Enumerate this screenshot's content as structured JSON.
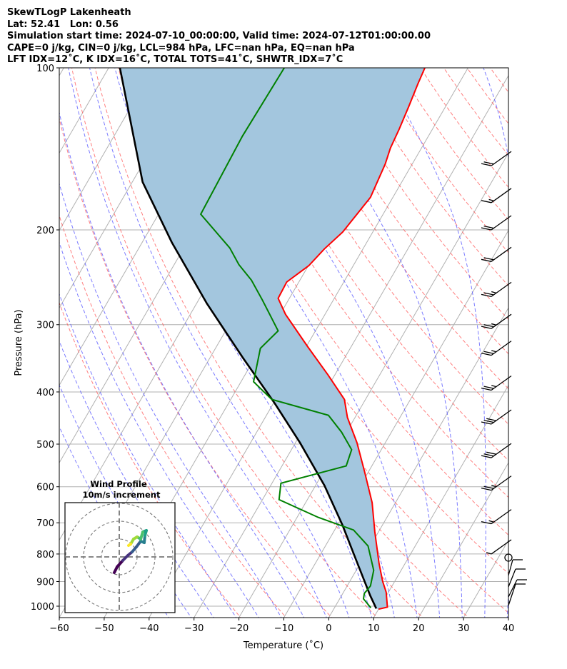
{
  "header": {
    "lines": [
      "SkewTLogP Lakenheath",
      "Lat: 52.41   Lon: 0.56",
      "Simulation start time: 2024-07-10_00:00:00, Valid time: 2024-07-12T01:00:00.00",
      "CAPE=0 j/kg, CIN=0 j/kg, LCL=984 hPa, LFC=nan hPa, EQ=nan hPa",
      "LFT IDX=12˚C, K IDX=16˚C, TOTAL TOTS=41˚C, SHWTR_IDX=7˚C"
    ]
  },
  "colors": {
    "temperature": "#ff0000",
    "dewpoint": "#008000",
    "parcel": "#000000",
    "shade": "#a3c6de",
    "isotherm": "#b0b0b0",
    "dry_adiabat": "#ff6060",
    "moist_adiabat": "#5a5aff"
  },
  "chart_data": {
    "type": "line",
    "subtype": "skewt-logp",
    "xlabel": "Temperature (˚C)",
    "ylabel": "Pressure (hPa)",
    "xlim": [
      -60,
      40
    ],
    "ylim": [
      1051,
      100
    ],
    "xticks": [
      "−60",
      "−50",
      "−40",
      "−30",
      "−20",
      "−10",
      "0",
      "10",
      "20",
      "30",
      "40"
    ],
    "xtick_values": [
      -60,
      -50,
      -40,
      -30,
      -20,
      -10,
      0,
      10,
      20,
      30,
      40
    ],
    "yticks": [
      "100",
      "200",
      "300",
      "400",
      "500",
      "600",
      "700",
      "800",
      "900",
      "1000"
    ],
    "ytick_values": [
      100,
      200,
      300,
      400,
      500,
      600,
      700,
      800,
      900,
      1000
    ],
    "temperature": {
      "p": [
        1013,
        1004,
        942,
        899,
        833,
        728,
        642,
        561,
        497,
        446,
        413,
        372,
        329,
        287,
        268,
        250,
        233,
        217,
        202,
        174,
        151,
        141,
        130,
        118,
        107,
        100
      ],
      "t": [
        10.0,
        11.7,
        9.5,
        7.3,
        4.2,
        -0.8,
        -5.2,
        -11,
        -16.3,
        -21.7,
        -24.7,
        -31.5,
        -39.8,
        -48.8,
        -52.5,
        -52.7,
        -49.9,
        -48.6,
        -46.7,
        -45,
        -46,
        -46.9,
        -47.4,
        -48.2,
        -49.1,
        -49.6
      ]
    },
    "dewpoint": {
      "p": [
        1007,
        969,
        947,
        917,
        858,
        773,
        722,
        684,
        634,
        591,
        549,
        512,
        475,
        442,
        413,
        383,
        332,
        308,
        270,
        248,
        232,
        216,
        187,
        134,
        100
      ],
      "t": [
        8.1,
        5.3,
        4.8,
        5.2,
        3.9,
        -0.5,
        -5.8,
        -15.3,
        -26.3,
        -28,
        -15.7,
        -16.6,
        -21.1,
        -26.2,
        -40.9,
        -47.2,
        -50,
        -48.3,
        -55.8,
        -60.8,
        -65.6,
        -69.8,
        -80.6,
        -81.4,
        -80.9
      ]
    },
    "parcel": {
      "p": [
        1010,
        956,
        833,
        707,
        597,
        497,
        420,
        345,
        274,
        211,
        163,
        100
      ],
      "t": [
        9.4,
        6.4,
        -0.6,
        -8.9,
        -18,
        -29,
        -39.7,
        -52.8,
        -67.7,
        -83.4,
        -97.7,
        -117.5
      ]
    },
    "wind_barbs": [
      {
        "p": 152,
        "speed_kt": 20
      },
      {
        "p": 178,
        "speed_kt": 15
      },
      {
        "p": 200,
        "speed_kt": 20
      },
      {
        "p": 229,
        "speed_kt": 20
      },
      {
        "p": 266,
        "speed_kt": 25
      },
      {
        "p": 305,
        "speed_kt": 25
      },
      {
        "p": 342,
        "speed_kt": 25
      },
      {
        "p": 397,
        "speed_kt": 25
      },
      {
        "p": 459,
        "speed_kt": 30
      },
      {
        "p": 530,
        "speed_kt": 30
      },
      {
        "p": 609,
        "speed_kt": 25
      },
      {
        "p": 703,
        "speed_kt": 15
      },
      {
        "p": 800,
        "speed_kt": 5
      }
    ],
    "hodograph": {
      "title": "Wind Profile",
      "subtitle": "10m/s increment",
      "rings_ms": [
        10,
        20,
        30
      ],
      "u": [
        -2.8,
        -1.2,
        2,
        4.8,
        7.2,
        9.6,
        12,
        14,
        14.4,
        15.2,
        13.2,
        12,
        10,
        8,
        6.4,
        5.2
      ],
      "v": [
        -8.8,
        -5.6,
        -2,
        0.8,
        2.8,
        5.6,
        8.8,
        8,
        12,
        14.8,
        14,
        10,
        11.2,
        10,
        7.2,
        6.4
      ]
    }
  }
}
